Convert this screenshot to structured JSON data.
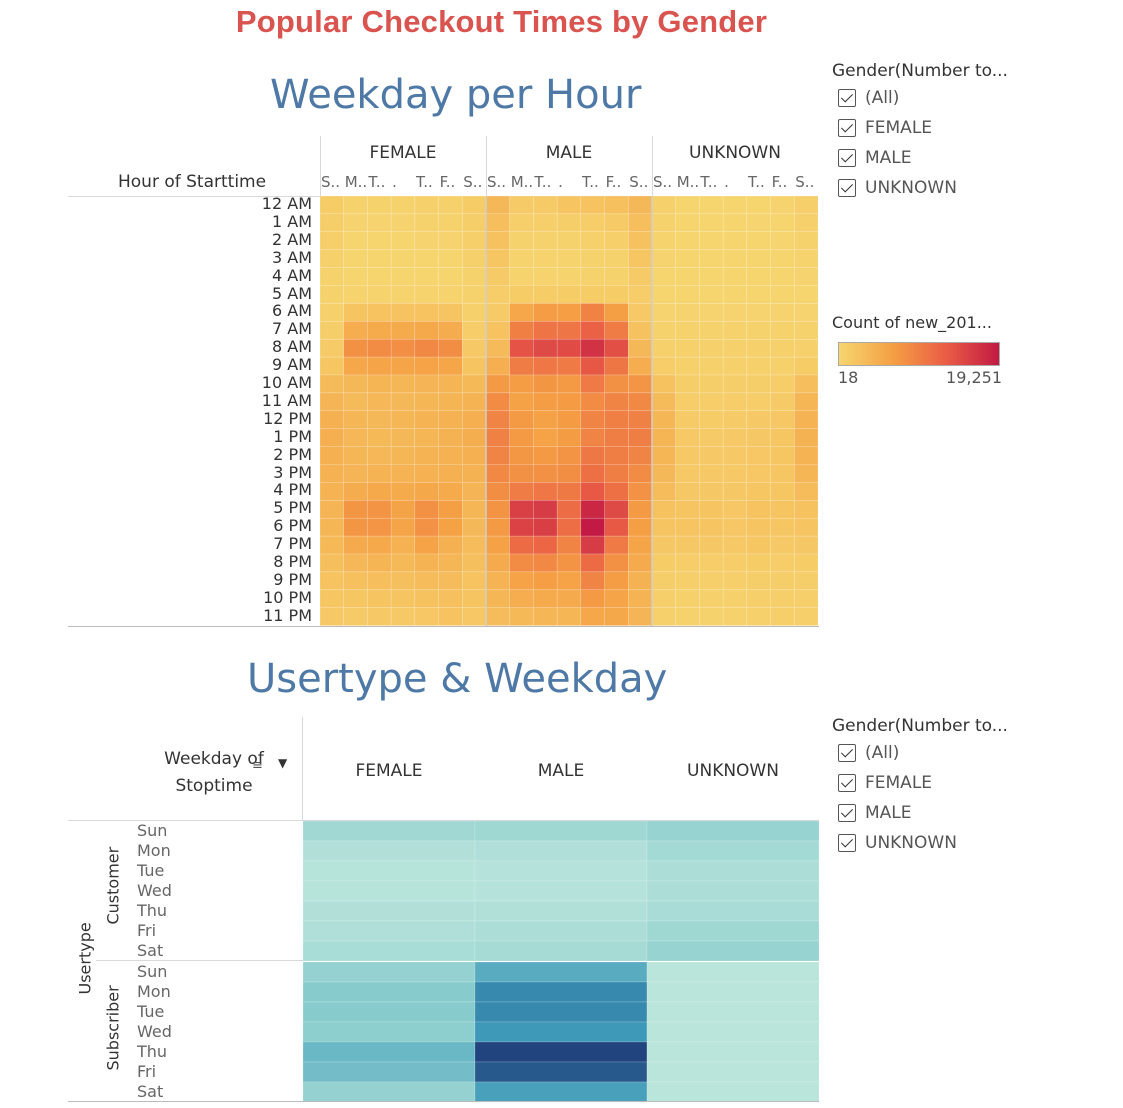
{
  "title": "Popular Checkout Times by Gender",
  "section1_title": "Weekday per Hour",
  "section2_title": "Usertype & Weekday",
  "row_header1": "Hour of Starttime",
  "row_header2_line1": "Weekday of",
  "row_header2_line2": "Stoptime",
  "genders": [
    "FEMALE",
    "MALE",
    "UNKNOWN"
  ],
  "day_tick_labels": [
    "S..",
    "M..",
    "T..",
    ".",
    "T..",
    "F..",
    "S.."
  ],
  "filter1": {
    "title": "Gender(Number to...",
    "items": [
      "(All)",
      "FEMALE",
      "MALE",
      "UNKNOWN"
    ]
  },
  "filter2": {
    "title": "Gender(Number to...",
    "items": [
      "(All)",
      "FEMALE",
      "MALE",
      "UNKNOWN"
    ]
  },
  "legend": {
    "title": "Count of new_201...",
    "min_label": "18",
    "max_label": "19,251",
    "min": 18,
    "max": 19251,
    "colors": [
      "#f6d56f",
      "#f5a044",
      "#ea5d45",
      "#c21a44"
    ]
  },
  "usertype_axis_label": "Usertype",
  "usertype_colors": [
    "#bde6dc",
    "#8fcfcf",
    "#3c98b8",
    "#1f3e7a"
  ],
  "chart_data": [
    {
      "type": "heatmap",
      "title": "Weekday per Hour",
      "rows": [
        "12 AM",
        "1 AM",
        "2 AM",
        "3 AM",
        "4 AM",
        "5 AM",
        "6 AM",
        "7 AM",
        "8 AM",
        "9 AM",
        "10 AM",
        "11 AM",
        "12 PM",
        "1 PM",
        "2 PM",
        "3 PM",
        "4 PM",
        "5 PM",
        "6 PM",
        "7 PM",
        "8 PM",
        "9 PM",
        "10 PM",
        "11 PM"
      ],
      "columns": [
        "Sun",
        "Mon",
        "Tue",
        "Wed",
        "Thu",
        "Fri",
        "Sat"
      ],
      "facets": [
        "FEMALE",
        "MALE",
        "UNKNOWN"
      ],
      "values": {
        "FEMALE": [
          [
            700,
            200,
            200,
            200,
            300,
            300,
            700
          ],
          [
            500,
            100,
            100,
            100,
            200,
            200,
            500
          ],
          [
            400,
            80,
            80,
            80,
            100,
            100,
            400
          ],
          [
            300,
            50,
            50,
            50,
            80,
            80,
            300
          ],
          [
            200,
            50,
            50,
            50,
            60,
            60,
            200
          ],
          [
            200,
            150,
            150,
            150,
            150,
            150,
            200
          ],
          [
            300,
            1400,
            1500,
            1500,
            1500,
            1400,
            300
          ],
          [
            500,
            3800,
            4200,
            4200,
            4300,
            3900,
            600
          ],
          [
            800,
            6800,
            7200,
            6900,
            7600,
            7000,
            900
          ],
          [
            1200,
            4500,
            4800,
            4700,
            5000,
            4600,
            1300
          ],
          [
            2400,
            2600,
            2900,
            2800,
            3000,
            2900,
            2500
          ],
          [
            3000,
            2400,
            2700,
            2600,
            2800,
            2900,
            3100
          ],
          [
            3500,
            2800,
            2600,
            2800,
            3100,
            3300,
            3600
          ],
          [
            3600,
            2700,
            2500,
            2600,
            2800,
            3300,
            3700
          ],
          [
            3500,
            2800,
            2700,
            2800,
            3200,
            3400,
            3500
          ],
          [
            3400,
            3000,
            3100,
            3200,
            3400,
            3500,
            3300
          ],
          [
            3200,
            3900,
            4300,
            4100,
            4400,
            4200,
            3000
          ],
          [
            3000,
            6200,
            6400,
            4900,
            6800,
            5400,
            2800
          ],
          [
            2800,
            6200,
            6300,
            4800,
            6700,
            5100,
            2600
          ],
          [
            2500,
            4000,
            4300,
            3400,
            5000,
            3500,
            2300
          ],
          [
            1900,
            2700,
            2900,
            2500,
            3200,
            2800,
            1900
          ],
          [
            1500,
            1800,
            2000,
            1900,
            2200,
            2300,
            1500
          ],
          [
            1200,
            1200,
            1400,
            1400,
            1600,
            1800,
            1300
          ],
          [
            900,
            800,
            900,
            900,
            1100,
            1500,
            1100
          ]
        ],
        "MALE": [
          [
            2600,
            800,
            800,
            1300,
            1500,
            1800,
            2600
          ],
          [
            2000,
            400,
            400,
            500,
            600,
            800,
            2000
          ],
          [
            1600,
            200,
            200,
            200,
            300,
            400,
            1600
          ],
          [
            1200,
            150,
            150,
            150,
            200,
            200,
            1200
          ],
          [
            800,
            150,
            150,
            150,
            200,
            200,
            800
          ],
          [
            600,
            700,
            700,
            700,
            700,
            700,
            600
          ],
          [
            800,
            4500,
            5600,
            5500,
            8200,
            5400,
            900
          ],
          [
            1500,
            8500,
            9700,
            9500,
            11500,
            8800,
            1700
          ],
          [
            2400,
            13000,
            14000,
            13800,
            16500,
            13300,
            2600
          ],
          [
            3600,
            8800,
            9300,
            9000,
            12600,
            9400,
            3800
          ],
          [
            6000,
            5600,
            6200,
            6000,
            9000,
            6800,
            6300
          ],
          [
            7200,
            5200,
            5600,
            5800,
            7200,
            8000,
            7500
          ],
          [
            8000,
            6000,
            5200,
            5800,
            8000,
            8500,
            8300
          ],
          [
            8300,
            5900,
            5000,
            5700,
            8000,
            8600,
            8600
          ],
          [
            8000,
            6100,
            5900,
            6400,
            9200,
            8600,
            8000
          ],
          [
            7500,
            6800,
            6800,
            7000,
            10000,
            8600,
            7200
          ],
          [
            7000,
            8900,
            9300,
            9100,
            12500,
            10000,
            6700
          ],
          [
            6500,
            15000,
            15500,
            10400,
            17800,
            14000,
            6000
          ],
          [
            6000,
            14800,
            15200,
            10200,
            19251,
            12400,
            5400
          ],
          [
            5200,
            10500,
            11000,
            8000,
            15500,
            9000,
            4800
          ],
          [
            4000,
            7200,
            7500,
            6500,
            10500,
            6800,
            4000
          ],
          [
            3200,
            5000,
            5500,
            5000,
            8000,
            5600,
            3300
          ],
          [
            2800,
            3800,
            4200,
            4000,
            6000,
            4700,
            3100
          ],
          [
            2300,
            2500,
            2800,
            2800,
            4500,
            4400,
            3000
          ]
        ],
        "UNKNOWN": [
          [
            300,
            50,
            50,
            50,
            60,
            100,
            400
          ],
          [
            200,
            30,
            30,
            30,
            40,
            60,
            300
          ],
          [
            150,
            20,
            20,
            20,
            30,
            40,
            200
          ],
          [
            100,
            18,
            18,
            18,
            20,
            30,
            150
          ],
          [
            80,
            18,
            18,
            18,
            20,
            20,
            100
          ],
          [
            60,
            20,
            20,
            20,
            20,
            20,
            60
          ],
          [
            100,
            100,
            100,
            100,
            100,
            100,
            100
          ],
          [
            200,
            200,
            200,
            200,
            200,
            200,
            200
          ],
          [
            300,
            300,
            300,
            300,
            300,
            300,
            300
          ],
          [
            600,
            300,
            300,
            300,
            300,
            300,
            700
          ],
          [
            1600,
            500,
            500,
            500,
            500,
            600,
            2000
          ],
          [
            2400,
            600,
            600,
            600,
            600,
            800,
            2800
          ],
          [
            2800,
            800,
            700,
            800,
            900,
            1100,
            3200
          ],
          [
            2900,
            900,
            800,
            900,
            1000,
            1200,
            3300
          ],
          [
            2800,
            900,
            900,
            900,
            1100,
            1200,
            3100
          ],
          [
            2600,
            900,
            900,
            900,
            1100,
            1200,
            2800
          ],
          [
            2200,
            1000,
            1000,
            1000,
            1200,
            1200,
            2300
          ],
          [
            1700,
            1400,
            1400,
            1100,
            1500,
            1300,
            1700
          ],
          [
            1400,
            1300,
            1300,
            1100,
            1400,
            1200,
            1400
          ],
          [
            1000,
            1000,
            1000,
            900,
            1200,
            900,
            1000
          ],
          [
            700,
            600,
            600,
            600,
            700,
            600,
            700
          ],
          [
            500,
            400,
            400,
            400,
            500,
            500,
            500
          ],
          [
            400,
            300,
            300,
            300,
            400,
            400,
            400
          ],
          [
            300,
            200,
            200,
            200,
            300,
            400,
            400
          ]
        ]
      }
    },
    {
      "type": "heatmap",
      "title": "Usertype & Weekday",
      "columns": [
        "FEMALE",
        "MALE",
        "UNKNOWN"
      ],
      "groups": [
        {
          "name": "Customer",
          "rows": [
            "Sun",
            "Mon",
            "Tue",
            "Wed",
            "Thu",
            "Fri",
            "Sat"
          ],
          "values": [
            [
              0.2,
              0.22,
              0.28
            ],
            [
              0.08,
              0.1,
              0.18
            ],
            [
              0.05,
              0.06,
              0.12
            ],
            [
              0.05,
              0.06,
              0.12
            ],
            [
              0.08,
              0.09,
              0.14
            ],
            [
              0.1,
              0.12,
              0.22
            ],
            [
              0.15,
              0.17,
              0.28
            ]
          ]
        },
        {
          "name": "Subscriber",
          "rows": [
            "Sun",
            "Mon",
            "Tue",
            "Wed",
            "Thu",
            "Fri",
            "Sat"
          ],
          "values": [
            [
              0.3,
              0.55,
              0.02
            ],
            [
              0.36,
              0.72,
              0.02
            ],
            [
              0.36,
              0.72,
              0.02
            ],
            [
              0.34,
              0.66,
              0.02
            ],
            [
              0.48,
              0.98,
              0.02
            ],
            [
              0.44,
              0.9,
              0.02
            ],
            [
              0.3,
              0.62,
              0.02
            ]
          ]
        }
      ]
    }
  ]
}
